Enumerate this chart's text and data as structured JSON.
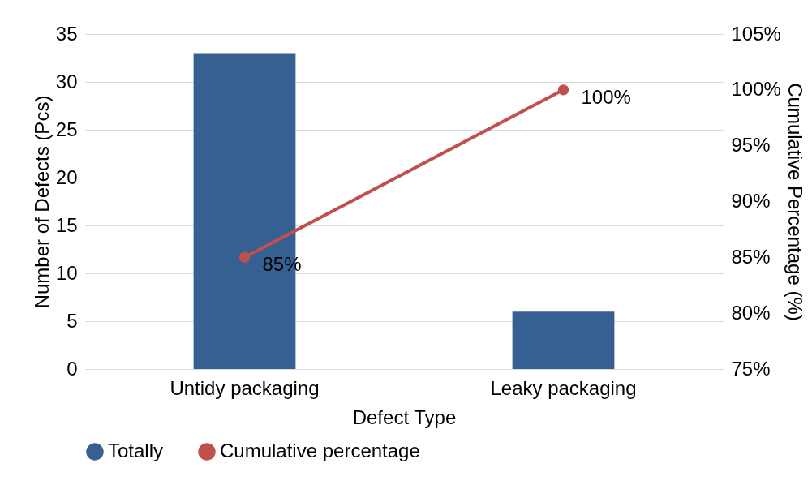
{
  "chart_data": {
    "type": "bar",
    "categories": [
      "Untidy packaging",
      "Leaky packaging"
    ],
    "xlabel": "Defect Type",
    "ylabel": "Number of  Defects  (Pcs)",
    "y2label": "Cumulative Percentage (%)",
    "ylim": [
      0,
      35
    ],
    "yticks": [
      0,
      5,
      10,
      15,
      20,
      25,
      30,
      35
    ],
    "y2lim": [
      75,
      105
    ],
    "y2ticks": [
      {
        "value": 75,
        "label": "75%"
      },
      {
        "value": 80,
        "label": "80%"
      },
      {
        "value": 85,
        "label": "85%"
      },
      {
        "value": 90,
        "label": "90%"
      },
      {
        "value": 95,
        "label": "95%"
      },
      {
        "value": 100,
        "label": "100%"
      },
      {
        "value": 105,
        "label": "105%"
      }
    ],
    "series": [
      {
        "name": "Totally",
        "color": "#376092",
        "values": [
          33,
          6
        ]
      },
      {
        "name": "Cumulative percentage",
        "type": "line",
        "axis": "y2",
        "color": "#c0504d",
        "values": [
          85,
          100
        ],
        "value_labels": [
          "85%",
          "100%"
        ]
      }
    ],
    "grid": "y",
    "legend": "bottom",
    "marker": "circle",
    "line_style": "solid"
  }
}
